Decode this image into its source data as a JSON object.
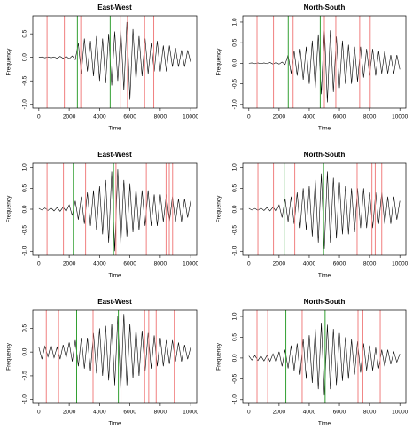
{
  "chart_data": [
    {
      "type": "line",
      "title": "East-West",
      "xlabel": "Time",
      "ylabel": "Frequency",
      "color": "#000000",
      "x": [
        0,
        200,
        400,
        600,
        800,
        1000,
        1200,
        1400,
        1600,
        1800,
        2000,
        2200,
        2400,
        2600,
        2800,
        3000,
        3200,
        3400,
        3600,
        3800,
        4000,
        4200,
        4400,
        4600,
        4800,
        5000,
        5200,
        5400,
        5600,
        5800,
        6000,
        6200,
        6400,
        6600,
        6800,
        7000,
        7200,
        7400,
        7600,
        7800,
        8000,
        8200,
        8400,
        8600,
        8800,
        9000,
        9200,
        9400,
        9600,
        9800,
        10000
      ],
      "values": [
        0,
        0.01,
        -0.01,
        0.01,
        -0.01,
        0.01,
        -0.02,
        0.02,
        -0.02,
        0.02,
        -0.03,
        0.03,
        -0.05,
        0.3,
        -0.35,
        0.4,
        -0.3,
        0.35,
        -0.4,
        0.45,
        -0.5,
        0.4,
        -0.55,
        0.5,
        -0.6,
        0.55,
        -0.5,
        0.6,
        -0.7,
        0.75,
        -0.9,
        0.6,
        -0.5,
        0.45,
        -0.4,
        0.4,
        -0.35,
        0.3,
        -0.3,
        0.35,
        -0.3,
        0.25,
        -0.3,
        0.25,
        -0.2,
        0.2,
        -0.2,
        0.15,
        -0.2,
        0.15,
        -0.1
      ],
      "vlines": [
        {
          "color": "#f08080",
          "x": [
            540,
            1680,
            2760,
            5400,
            5840,
            6970,
            7570,
            8970
          ]
        },
        {
          "color": "#33a033",
          "x": [
            2540,
            4700
          ]
        }
      ],
      "xlim": [
        -400,
        10400
      ],
      "xticks": [
        0,
        2000,
        4000,
        6000,
        8000,
        10000
      ],
      "ylim": [
        -1.08,
        0.88
      ],
      "yticks": [
        {
          "value": -1,
          "label": "-1.0"
        },
        {
          "value": -0.5,
          "label": "-0.5"
        },
        {
          "value": 0,
          "label": "0.0"
        },
        {
          "value": 0.5,
          "label": "0.5"
        }
      ]
    },
    {
      "type": "line",
      "title": "North-South",
      "xlabel": "Time",
      "ylabel": "Frequency",
      "color": "#000000",
      "x": [
        0,
        200,
        400,
        600,
        800,
        1000,
        1200,
        1400,
        1600,
        1800,
        2000,
        2200,
        2400,
        2600,
        2800,
        3000,
        3200,
        3400,
        3600,
        3800,
        4000,
        4200,
        4400,
        4600,
        4800,
        5000,
        5200,
        5400,
        5600,
        5800,
        6000,
        6200,
        6400,
        6600,
        6800,
        7000,
        7200,
        7400,
        7600,
        7800,
        8000,
        8200,
        8400,
        8600,
        8800,
        9000,
        9200,
        9400,
        9600,
        9800,
        10000
      ],
      "values": [
        0,
        0.01,
        -0.01,
        0.01,
        -0.01,
        0.01,
        -0.01,
        0.02,
        -0.02,
        0.02,
        -0.02,
        0.03,
        -0.03,
        0.2,
        -0.25,
        0.3,
        -0.3,
        0.35,
        -0.4,
        0.4,
        -0.5,
        0.55,
        -0.6,
        0.7,
        -0.75,
        0.9,
        -0.95,
        0.8,
        -0.7,
        0.65,
        -0.6,
        0.55,
        -0.5,
        0.45,
        -0.5,
        0.4,
        -0.45,
        0.4,
        -0.35,
        0.35,
        -0.3,
        0.35,
        -0.3,
        0.3,
        -0.25,
        0.3,
        -0.25,
        0.2,
        -0.25,
        0.2,
        -0.15
      ],
      "vlines": [
        {
          "color": "#f08080",
          "x": [
            540,
            1630,
            2930,
            5000,
            5760,
            7340,
            8040
          ]
        },
        {
          "color": "#33a033",
          "x": [
            2610,
            4730
          ]
        }
      ],
      "xlim": [
        -400,
        10400
      ],
      "xticks": [
        0,
        2000,
        4000,
        6000,
        8000,
        10000
      ],
      "ylim": [
        -1.09,
        1.15
      ],
      "yticks": [
        {
          "value": -1,
          "label": "-1.0"
        },
        {
          "value": -0.5,
          "label": "-0.5"
        },
        {
          "value": 0,
          "label": "0.0"
        },
        {
          "value": 0.5,
          "label": "0.5"
        },
        {
          "value": 1,
          "label": "1.0"
        }
      ]
    },
    {
      "type": "line",
      "title": "East-West",
      "xlabel": "Time",
      "ylabel": "Frequency",
      "color": "#000000",
      "x": [
        0,
        200,
        400,
        600,
        800,
        1000,
        1200,
        1400,
        1600,
        1800,
        2000,
        2200,
        2400,
        2600,
        2800,
        3000,
        3200,
        3400,
        3600,
        3800,
        4000,
        4200,
        4400,
        4600,
        4800,
        5000,
        5200,
        5400,
        5600,
        5800,
        6000,
        6200,
        6400,
        6600,
        6800,
        7000,
        7200,
        7400,
        7600,
        7800,
        8000,
        8200,
        8400,
        8600,
        8800,
        9000,
        9200,
        9400,
        9600,
        9800,
        10000
      ],
      "values": [
        0.02,
        -0.02,
        0.03,
        -0.03,
        0.03,
        -0.04,
        0.04,
        -0.05,
        0.05,
        -0.05,
        0.1,
        -0.15,
        0.2,
        -0.25,
        0.3,
        -0.35,
        0.4,
        -0.4,
        0.45,
        -0.5,
        0.55,
        -0.6,
        0.7,
        -0.8,
        0.9,
        -1.0,
        0.95,
        -0.85,
        0.7,
        -0.65,
        0.6,
        -0.55,
        0.5,
        -0.5,
        0.45,
        -0.4,
        0.45,
        -0.4,
        0.35,
        -0.4,
        0.35,
        -0.3,
        0.35,
        -0.3,
        0.3,
        -0.3,
        0.25,
        -0.3,
        0.25,
        -0.2,
        0.2
      ],
      "vlines": [
        {
          "color": "#f08080",
          "x": [
            540,
            1620,
            3080,
            5080,
            7080,
            8380,
            8590,
            8810
          ]
        },
        {
          "color": "#33a033",
          "x": [
            2270,
            4920
          ]
        }
      ],
      "xlim": [
        -400,
        10400
      ],
      "xticks": [
        0,
        2000,
        4000,
        6000,
        8000,
        10000
      ],
      "ylim": [
        -1.1,
        1.1
      ],
      "yticks": [
        {
          "value": -1,
          "label": "-1.0"
        },
        {
          "value": -0.5,
          "label": "-0.5"
        },
        {
          "value": 0,
          "label": "0.0"
        },
        {
          "value": 0.5,
          "label": "0.5"
        },
        {
          "value": 1,
          "label": "1.0"
        }
      ]
    },
    {
      "type": "line",
      "title": "North-South",
      "xlabel": "Time",
      "ylabel": "Frequency",
      "color": "#000000",
      "x": [
        0,
        200,
        400,
        600,
        800,
        1000,
        1200,
        1400,
        1600,
        1800,
        2000,
        2200,
        2400,
        2600,
        2800,
        3000,
        3200,
        3400,
        3600,
        3800,
        4000,
        4200,
        4400,
        4600,
        4800,
        5000,
        5200,
        5400,
        5600,
        5800,
        6000,
        6200,
        6400,
        6600,
        6800,
        7000,
        7200,
        7400,
        7600,
        7800,
        8000,
        8200,
        8400,
        8600,
        8800,
        9000,
        9200,
        9400,
        9600,
        9800,
        10000
      ],
      "values": [
        0.02,
        -0.02,
        0.02,
        -0.03,
        0.03,
        -0.03,
        0.04,
        -0.04,
        0.05,
        -0.05,
        0.1,
        -0.2,
        0.25,
        -0.3,
        0.3,
        -0.35,
        0.4,
        -0.45,
        0.5,
        -0.5,
        0.55,
        -0.65,
        0.7,
        -0.8,
        0.85,
        -0.95,
        0.9,
        -0.8,
        0.75,
        -0.7,
        0.65,
        -0.6,
        0.55,
        -0.6,
        0.5,
        -0.55,
        0.5,
        -0.45,
        0.5,
        -0.45,
        0.4,
        -0.45,
        0.4,
        -0.35,
        0.4,
        -0.35,
        0.3,
        -0.35,
        0.3,
        -0.25,
        0.2
      ],
      "vlines": [
        {
          "color": "#f08080",
          "x": [
            600,
            1630,
            3040,
            7170,
            8150,
            8370,
            8800
          ]
        },
        {
          "color": "#33a033",
          "x": [
            2340,
            4950
          ]
        }
      ],
      "xlim": [
        -400,
        10400
      ],
      "xticks": [
        0,
        2000,
        4000,
        6000,
        8000,
        10000
      ],
      "ylim": [
        -1.1,
        1.1
      ],
      "yticks": [
        {
          "value": -1,
          "label": "-1.0"
        },
        {
          "value": -0.5,
          "label": "-0.5"
        },
        {
          "value": 0,
          "label": "0.0"
        },
        {
          "value": 0.5,
          "label": "0.5"
        },
        {
          "value": 1,
          "label": "1.0"
        }
      ]
    },
    {
      "type": "line",
      "title": "East-West",
      "xlabel": "Time",
      "ylabel": "Frequency",
      "color": "#000000",
      "x": [
        0,
        200,
        400,
        600,
        800,
        1000,
        1200,
        1400,
        1600,
        1800,
        2000,
        2200,
        2400,
        2600,
        2800,
        3000,
        3200,
        3400,
        3600,
        3800,
        4000,
        4200,
        4400,
        4600,
        4800,
        5000,
        5200,
        5400,
        5600,
        5800,
        6000,
        6200,
        6400,
        6600,
        6800,
        7000,
        7200,
        7400,
        7600,
        7800,
        8000,
        8200,
        8400,
        8600,
        8800,
        9000,
        9200,
        9400,
        9600,
        9800,
        10000
      ],
      "values": [
        0.1,
        -0.15,
        0.12,
        -0.1,
        0.15,
        -0.12,
        0.1,
        -0.15,
        0.15,
        -0.12,
        0.2,
        -0.2,
        0.25,
        -0.3,
        0.3,
        -0.35,
        0.3,
        -0.4,
        0.4,
        -0.45,
        0.5,
        -0.5,
        0.55,
        -0.6,
        0.6,
        -0.7,
        0.75,
        -0.8,
        0.8,
        -0.7,
        0.6,
        -0.55,
        0.5,
        -0.5,
        0.45,
        -0.4,
        0.4,
        -0.35,
        0.35,
        -0.3,
        0.3,
        -0.3,
        0.25,
        -0.25,
        0.25,
        -0.2,
        0.2,
        -0.2,
        0.15,
        -0.15,
        0.1
      ],
      "vlines": [
        {
          "color": "#f08080",
          "x": [
            490,
            1300,
            3570,
            5410,
            6970,
            7240,
            7730,
            8920
          ]
        },
        {
          "color": "#33a033",
          "x": [
            2490,
            5240
          ]
        }
      ],
      "xlim": [
        -400,
        10400
      ],
      "xticks": [
        0,
        2000,
        4000,
        6000,
        8000,
        10000
      ],
      "ylim": [
        -1.08,
        0.88
      ],
      "yticks": [
        {
          "value": -1,
          "label": "-1.0"
        },
        {
          "value": -0.5,
          "label": "-0.5"
        },
        {
          "value": 0,
          "label": "0.0"
        },
        {
          "value": 0.5,
          "label": "0.5"
        }
      ]
    },
    {
      "type": "line",
      "title": "North-South",
      "xlabel": "Time",
      "ylabel": "Frequency",
      "color": "#000000",
      "x": [
        0,
        200,
        400,
        600,
        800,
        1000,
        1200,
        1400,
        1600,
        1800,
        2000,
        2200,
        2400,
        2600,
        2800,
        3000,
        3200,
        3400,
        3600,
        3800,
        4000,
        4200,
        4400,
        4600,
        4800,
        5000,
        5200,
        5400,
        5600,
        5800,
        6000,
        6200,
        6400,
        6600,
        6800,
        7000,
        7200,
        7400,
        7600,
        7800,
        8000,
        8200,
        8400,
        8600,
        8800,
        9000,
        9200,
        9400,
        9600,
        9800,
        10000
      ],
      "values": [
        0.05,
        -0.05,
        0.06,
        -0.06,
        0.05,
        -0.07,
        0.06,
        -0.08,
        0.1,
        -0.1,
        0.15,
        -0.2,
        0.2,
        -0.25,
        0.3,
        -0.3,
        0.35,
        -0.4,
        0.45,
        -0.5,
        0.55,
        -0.6,
        0.7,
        -0.75,
        0.85,
        -0.9,
        0.8,
        -0.75,
        0.7,
        -0.65,
        0.6,
        -0.55,
        0.5,
        -0.5,
        0.45,
        -0.4,
        0.4,
        -0.35,
        0.35,
        -0.3,
        0.3,
        -0.3,
        0.25,
        -0.25,
        0.2,
        -0.2,
        0.2,
        -0.15,
        0.15,
        -0.1,
        0.1
      ],
      "vlines": [
        {
          "color": "#f08080",
          "x": [
            540,
            1250,
            3530,
            7230,
            7550,
            8700
          ]
        },
        {
          "color": "#33a033",
          "x": [
            2450,
            5050
          ]
        }
      ],
      "xlim": [
        -400,
        10400
      ],
      "xticks": [
        0,
        2000,
        4000,
        6000,
        8000,
        10000
      ],
      "ylim": [
        -1.09,
        1.15
      ],
      "yticks": [
        {
          "value": -1,
          "label": "-1.0"
        },
        {
          "value": -0.5,
          "label": "-0.5"
        },
        {
          "value": 0,
          "label": "0.0"
        },
        {
          "value": 0.5,
          "label": "0.5"
        },
        {
          "value": 1,
          "label": "1.0"
        }
      ]
    }
  ]
}
